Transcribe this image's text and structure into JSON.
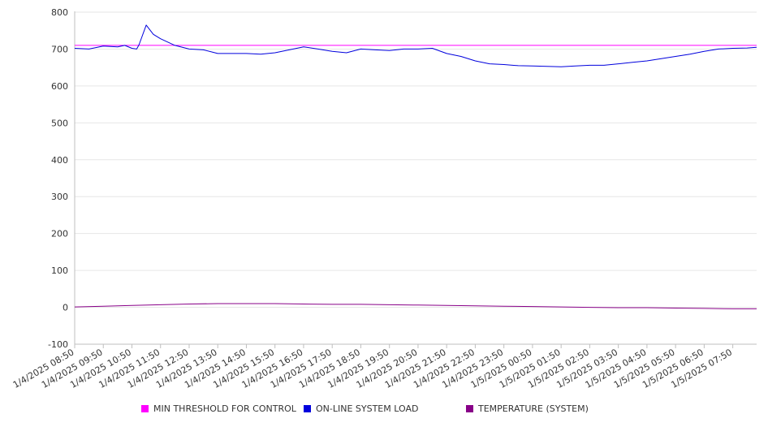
{
  "chart_data": {
    "type": "line",
    "ylim": [
      -100,
      800
    ],
    "yticks": [
      800,
      700,
      600,
      500,
      400,
      300,
      200,
      100,
      0,
      -100
    ],
    "grid": true,
    "legend_position": "bottom",
    "x_tick_labels": [
      "1/4/2025 08:50",
      "1/4/2025 09:50",
      "1/4/2025 10:50",
      "1/4/2025 11:50",
      "1/4/2025 12:50",
      "1/4/2025 13:50",
      "1/4/2025 14:50",
      "1/4/2025 15:50",
      "1/4/2025 16:50",
      "1/4/2025 17:50",
      "1/4/2025 18:50",
      "1/4/2025 19:50",
      "1/4/2025 20:50",
      "1/4/2025 21:50",
      "1/4/2025 22:50",
      "1/4/2025 23:50",
      "1/5/2025 00:50",
      "1/5/2025 01:50",
      "1/5/2025 02:50",
      "1/5/2025 03:50",
      "1/5/2025 04:50",
      "1/5/2025 05:50",
      "1/5/2025 06:50",
      "1/5/2025 07:50"
    ],
    "series": [
      {
        "name": "MIN THRESHOLD FOR CONTROL",
        "color": "#ff00ff",
        "x": [
          "1/4/2025 08:50",
          "1/5/2025 08:40"
        ],
        "values": [
          710,
          710
        ]
      },
      {
        "name": "ON-LINE SYSTEM LOAD",
        "color": "#0000dd",
        "x": [
          "1/4/2025 08:50",
          "1/4/2025 09:20",
          "1/4/2025 09:50",
          "1/4/2025 10:20",
          "1/4/2025 10:35",
          "1/4/2025 10:50",
          "1/4/2025 11:00",
          "1/4/2025 11:05",
          "1/4/2025 11:20",
          "1/4/2025 11:35",
          "1/4/2025 11:50",
          "1/4/2025 12:20",
          "1/4/2025 12:50",
          "1/4/2025 13:20",
          "1/4/2025 13:50",
          "1/4/2025 14:20",
          "1/4/2025 14:50",
          "1/4/2025 15:20",
          "1/4/2025 15:50",
          "1/4/2025 16:20",
          "1/4/2025 16:50",
          "1/4/2025 17:20",
          "1/4/2025 17:50",
          "1/4/2025 18:20",
          "1/4/2025 18:50",
          "1/4/2025 19:20",
          "1/4/2025 19:50",
          "1/4/2025 20:20",
          "1/4/2025 20:50",
          "1/4/2025 21:20",
          "1/4/2025 21:50",
          "1/4/2025 22:20",
          "1/4/2025 22:50",
          "1/4/2025 23:20",
          "1/4/2025 23:50",
          "1/5/2025 00:20",
          "1/5/2025 00:50",
          "1/5/2025 01:20",
          "1/5/2025 01:50",
          "1/5/2025 02:20",
          "1/5/2025 02:50",
          "1/5/2025 03:20",
          "1/5/2025 03:50",
          "1/5/2025 04:20",
          "1/5/2025 04:50",
          "1/5/2025 05:20",
          "1/5/2025 05:50",
          "1/5/2025 06:20",
          "1/5/2025 06:50",
          "1/5/2025 07:20",
          "1/5/2025 07:50",
          "1/5/2025 08:20",
          "1/5/2025 08:40"
        ],
        "values": [
          702,
          700,
          708,
          706,
          710,
          702,
          700,
          712,
          765,
          740,
          728,
          710,
          700,
          698,
          688,
          688,
          688,
          686,
          690,
          698,
          706,
          700,
          694,
          690,
          700,
          698,
          696,
          700,
          700,
          702,
          688,
          680,
          668,
          660,
          658,
          655,
          654,
          653,
          652,
          654,
          656,
          656,
          660,
          664,
          668,
          674,
          680,
          686,
          694,
          700,
          702,
          703,
          705
        ]
      },
      {
        "name": "TEMPERATURE (SYSTEM)",
        "color": "#880088",
        "x": [
          "1/4/2025 08:50",
          "1/4/2025 09:50",
          "1/4/2025 10:50",
          "1/4/2025 11:50",
          "1/4/2025 12:50",
          "1/4/2025 13:50",
          "1/4/2025 14:50",
          "1/4/2025 15:50",
          "1/4/2025 16:50",
          "1/4/2025 17:50",
          "1/4/2025 18:50",
          "1/4/2025 19:50",
          "1/4/2025 20:50",
          "1/4/2025 21:50",
          "1/4/2025 22:50",
          "1/4/2025 23:50",
          "1/5/2025 00:50",
          "1/5/2025 01:50",
          "1/5/2025 02:50",
          "1/5/2025 03:50",
          "1/5/2025 04:50",
          "1/5/2025 05:50",
          "1/5/2025 06:50",
          "1/5/2025 07:50",
          "1/5/2025 08:40"
        ],
        "values": [
          1,
          3,
          5,
          7,
          9,
          10,
          10,
          10,
          9,
          8,
          8,
          7,
          6,
          5,
          4,
          3,
          2,
          1,
          0,
          -1,
          -1,
          -2,
          -3,
          -4,
          -4
        ]
      }
    ]
  }
}
